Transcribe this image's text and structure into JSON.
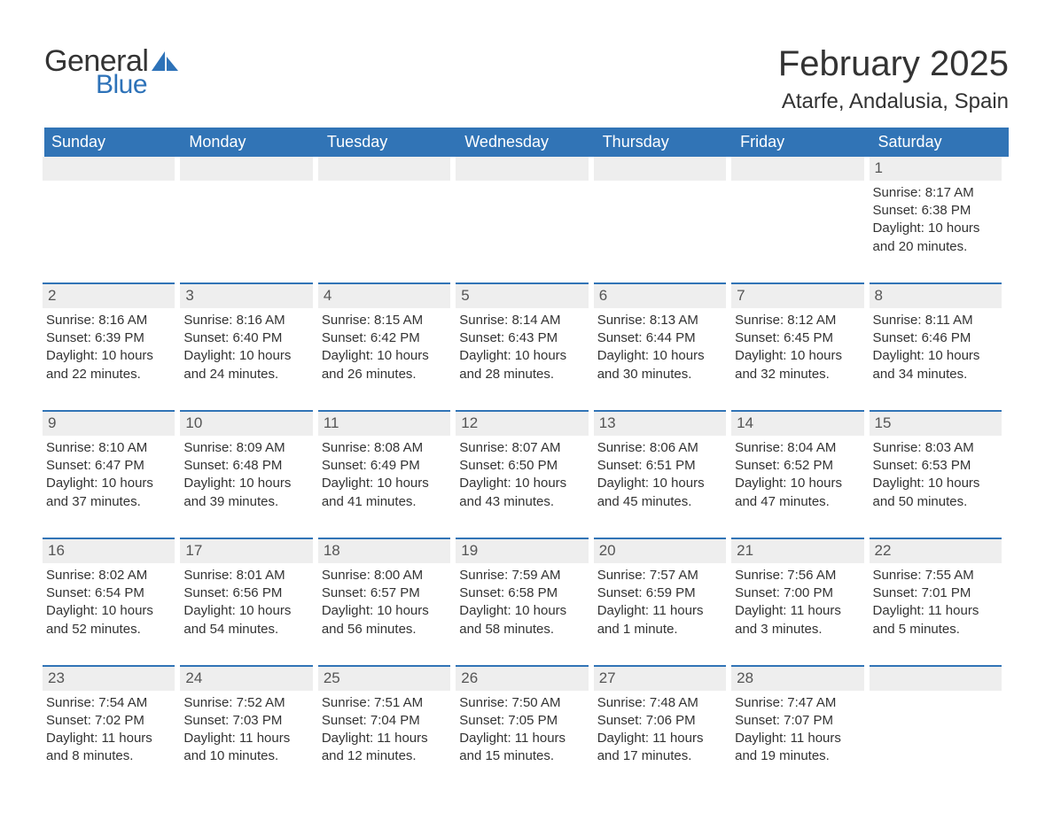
{
  "logo": {
    "text1": "General",
    "text2": "Blue"
  },
  "title": "February 2025",
  "location": "Atarfe, Andalusia, Spain",
  "colors": {
    "header_bg": "#3174b6",
    "header_text": "#ffffff",
    "daynum_bg": "#eeeeee",
    "daynum_border": "#3174b6",
    "body_text": "#333333",
    "logo_blue": "#2d72b8",
    "page_bg": "#ffffff"
  },
  "typography": {
    "title_fontsize": 40,
    "location_fontsize": 24,
    "header_fontsize": 18,
    "cell_fontsize": 15,
    "font_family": "Segoe UI, Arial, sans-serif"
  },
  "layout": {
    "columns": 7,
    "rows": 5,
    "first_day_column": 6,
    "days_in_month": 28
  },
  "day_headers": [
    "Sunday",
    "Monday",
    "Tuesday",
    "Wednesday",
    "Thursday",
    "Friday",
    "Saturday"
  ],
  "days": [
    {
      "n": 1,
      "sunrise": "8:17 AM",
      "sunset": "6:38 PM",
      "daylight": "10 hours and 20 minutes."
    },
    {
      "n": 2,
      "sunrise": "8:16 AM",
      "sunset": "6:39 PM",
      "daylight": "10 hours and 22 minutes."
    },
    {
      "n": 3,
      "sunrise": "8:16 AM",
      "sunset": "6:40 PM",
      "daylight": "10 hours and 24 minutes."
    },
    {
      "n": 4,
      "sunrise": "8:15 AM",
      "sunset": "6:42 PM",
      "daylight": "10 hours and 26 minutes."
    },
    {
      "n": 5,
      "sunrise": "8:14 AM",
      "sunset": "6:43 PM",
      "daylight": "10 hours and 28 minutes."
    },
    {
      "n": 6,
      "sunrise": "8:13 AM",
      "sunset": "6:44 PM",
      "daylight": "10 hours and 30 minutes."
    },
    {
      "n": 7,
      "sunrise": "8:12 AM",
      "sunset": "6:45 PM",
      "daylight": "10 hours and 32 minutes."
    },
    {
      "n": 8,
      "sunrise": "8:11 AM",
      "sunset": "6:46 PM",
      "daylight": "10 hours and 34 minutes."
    },
    {
      "n": 9,
      "sunrise": "8:10 AM",
      "sunset": "6:47 PM",
      "daylight": "10 hours and 37 minutes."
    },
    {
      "n": 10,
      "sunrise": "8:09 AM",
      "sunset": "6:48 PM",
      "daylight": "10 hours and 39 minutes."
    },
    {
      "n": 11,
      "sunrise": "8:08 AM",
      "sunset": "6:49 PM",
      "daylight": "10 hours and 41 minutes."
    },
    {
      "n": 12,
      "sunrise": "8:07 AM",
      "sunset": "6:50 PM",
      "daylight": "10 hours and 43 minutes."
    },
    {
      "n": 13,
      "sunrise": "8:06 AM",
      "sunset": "6:51 PM",
      "daylight": "10 hours and 45 minutes."
    },
    {
      "n": 14,
      "sunrise": "8:04 AM",
      "sunset": "6:52 PM",
      "daylight": "10 hours and 47 minutes."
    },
    {
      "n": 15,
      "sunrise": "8:03 AM",
      "sunset": "6:53 PM",
      "daylight": "10 hours and 50 minutes."
    },
    {
      "n": 16,
      "sunrise": "8:02 AM",
      "sunset": "6:54 PM",
      "daylight": "10 hours and 52 minutes."
    },
    {
      "n": 17,
      "sunrise": "8:01 AM",
      "sunset": "6:56 PM",
      "daylight": "10 hours and 54 minutes."
    },
    {
      "n": 18,
      "sunrise": "8:00 AM",
      "sunset": "6:57 PM",
      "daylight": "10 hours and 56 minutes."
    },
    {
      "n": 19,
      "sunrise": "7:59 AM",
      "sunset": "6:58 PM",
      "daylight": "10 hours and 58 minutes."
    },
    {
      "n": 20,
      "sunrise": "7:57 AM",
      "sunset": "6:59 PM",
      "daylight": "11 hours and 1 minute."
    },
    {
      "n": 21,
      "sunrise": "7:56 AM",
      "sunset": "7:00 PM",
      "daylight": "11 hours and 3 minutes."
    },
    {
      "n": 22,
      "sunrise": "7:55 AM",
      "sunset": "7:01 PM",
      "daylight": "11 hours and 5 minutes."
    },
    {
      "n": 23,
      "sunrise": "7:54 AM",
      "sunset": "7:02 PM",
      "daylight": "11 hours and 8 minutes."
    },
    {
      "n": 24,
      "sunrise": "7:52 AM",
      "sunset": "7:03 PM",
      "daylight": "11 hours and 10 minutes."
    },
    {
      "n": 25,
      "sunrise": "7:51 AM",
      "sunset": "7:04 PM",
      "daylight": "11 hours and 12 minutes."
    },
    {
      "n": 26,
      "sunrise": "7:50 AM",
      "sunset": "7:05 PM",
      "daylight": "11 hours and 15 minutes."
    },
    {
      "n": 27,
      "sunrise": "7:48 AM",
      "sunset": "7:06 PM",
      "daylight": "11 hours and 17 minutes."
    },
    {
      "n": 28,
      "sunrise": "7:47 AM",
      "sunset": "7:07 PM",
      "daylight": "11 hours and 19 minutes."
    }
  ],
  "labels": {
    "sunrise": "Sunrise: ",
    "sunset": "Sunset: ",
    "daylight": "Daylight: "
  }
}
